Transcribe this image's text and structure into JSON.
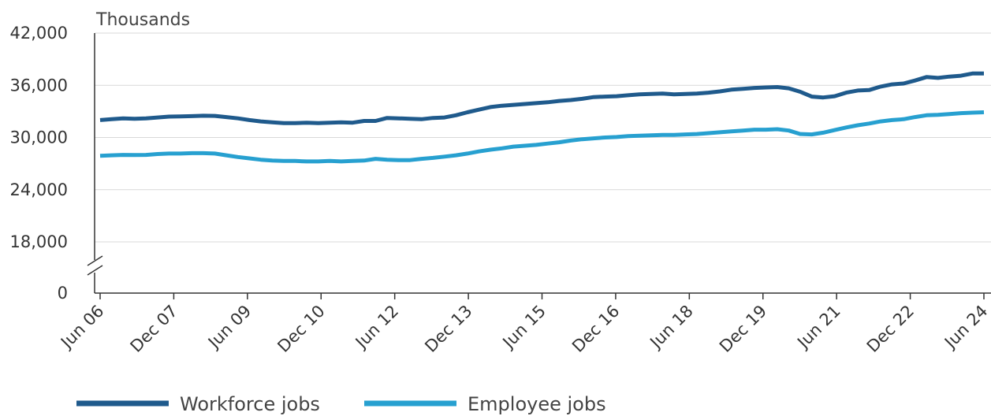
{
  "chart_data": {
    "type": "line",
    "ylabel": "Thousands",
    "ylim": [
      18000,
      42000
    ],
    "y_axis_break": true,
    "y_break_label": "0",
    "yticks": [
      "42,000",
      "36,000",
      "30,000",
      "24,000",
      "18,000"
    ],
    "x_tick_labels": [
      "Jun 06",
      "Dec 07",
      "Jun 09",
      "Dec 10",
      "Jun 12",
      "Dec 13",
      "Jun 15",
      "Dec 16",
      "Jun 18",
      "Dec 19",
      "Jun 21",
      "Dec 22",
      "Jun 24"
    ],
    "x_start": "2006-06",
    "x_end": "2024-06",
    "x_step": "quarter",
    "grid": "horizontal",
    "legend_position": "bottom-left",
    "series": [
      {
        "name": "Workforce jobs",
        "color": "#1f5a8c",
        "values": [
          32000,
          32100,
          32200,
          32150,
          32200,
          32300,
          32400,
          32420,
          32450,
          32500,
          32480,
          32350,
          32200,
          32000,
          31850,
          31750,
          31650,
          31650,
          31700,
          31650,
          31700,
          31750,
          31700,
          31900,
          31900,
          32250,
          32200,
          32150,
          32100,
          32250,
          32300,
          32550,
          32900,
          33200,
          33500,
          33650,
          33750,
          33850,
          33950,
          34050,
          34200,
          34300,
          34450,
          34650,
          34700,
          34750,
          34850,
          34950,
          35000,
          35050,
          34950,
          35000,
          35050,
          35150,
          35300,
          35500,
          35600,
          35700,
          35750,
          35800,
          35650,
          35250,
          34700,
          34600,
          34750,
          35150,
          35400,
          35450,
          35850,
          36100,
          36200,
          36550,
          36950,
          36850,
          37000,
          37100,
          37350,
          37350
        ]
      },
      {
        "name": "Employee jobs",
        "color": "#27a0d0",
        "values": [
          27900,
          27950,
          28000,
          27980,
          28000,
          28100,
          28150,
          28150,
          28200,
          28200,
          28150,
          27950,
          27750,
          27600,
          27450,
          27350,
          27300,
          27300,
          27250,
          27250,
          27300,
          27250,
          27300,
          27350,
          27550,
          27450,
          27400,
          27400,
          27550,
          27650,
          27800,
          27950,
          28150,
          28400,
          28600,
          28750,
          28950,
          29050,
          29150,
          29300,
          29450,
          29650,
          29800,
          29900,
          30000,
          30050,
          30150,
          30200,
          30250,
          30300,
          30300,
          30350,
          30400,
          30500,
          30600,
          30700,
          30800,
          30900,
          30900,
          30950,
          30800,
          30400,
          30350,
          30550,
          30850,
          31150,
          31400,
          31600,
          31850,
          32000,
          32100,
          32350,
          32550,
          32600,
          32700,
          32800,
          32850,
          32900
        ]
      }
    ]
  }
}
